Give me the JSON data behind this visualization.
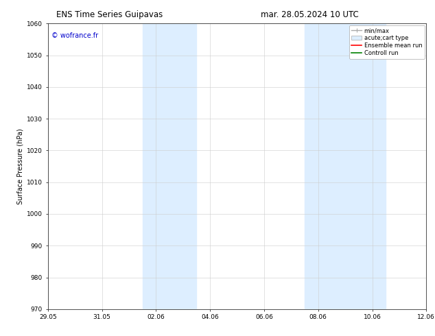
{
  "title_left": "ENS Time Series Guipavas",
  "title_right": "mar. 28.05.2024 10 UTC",
  "ylabel": "Surface Pressure (hPa)",
  "ylim": [
    970,
    1060
  ],
  "yticks": [
    970,
    980,
    990,
    1000,
    1010,
    1020,
    1030,
    1040,
    1050,
    1060
  ],
  "xtick_labels": [
    "29.05",
    "31.05",
    "02.06",
    "04.06",
    "06.06",
    "08.06",
    "10.06",
    "12.06"
  ],
  "xtick_positions": [
    0,
    2,
    4,
    6,
    8,
    10,
    12,
    14
  ],
  "xlim": [
    0,
    14
  ],
  "shaded_bands": [
    {
      "x_start": 3.5,
      "x_end": 5.5,
      "color": "#ddeeff"
    },
    {
      "x_start": 9.5,
      "x_end": 12.5,
      "color": "#ddeeff"
    }
  ],
  "watermark": "© wofrance.fr",
  "watermark_color": "#0000cc",
  "bg_color": "#ffffff",
  "grid_color": "#cccccc",
  "font_size_title": 8.5,
  "font_size_axis": 7,
  "font_size_tick": 6.5,
  "font_size_legend": 6,
  "font_size_watermark": 7
}
